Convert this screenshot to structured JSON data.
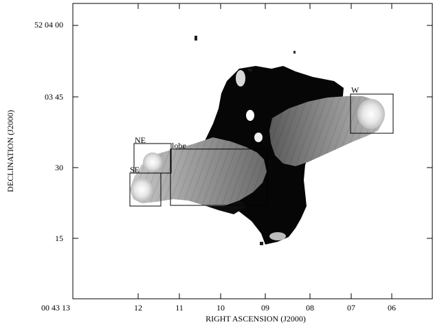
{
  "axes": {
    "xlabel": "RIGHT ASCENSION (J2000)",
    "ylabel": "DECLINATION (J2000)",
    "x_ticks": [
      "00 43 13",
      "12",
      "11",
      "10",
      "09",
      "08",
      "07",
      "06"
    ],
    "y_ticks": [
      "52 04 00",
      "03 45",
      "30",
      "15"
    ]
  },
  "regions": [
    {
      "label": "NE"
    },
    {
      "label": "lobe"
    },
    {
      "label": "SE"
    },
    {
      "label": "W"
    }
  ],
  "colors": {
    "background": "#ffffff",
    "frame": "#000000",
    "image_dark": "#050505",
    "image_mid": "#8a8a8a",
    "image_light": "#e8e8e8"
  }
}
